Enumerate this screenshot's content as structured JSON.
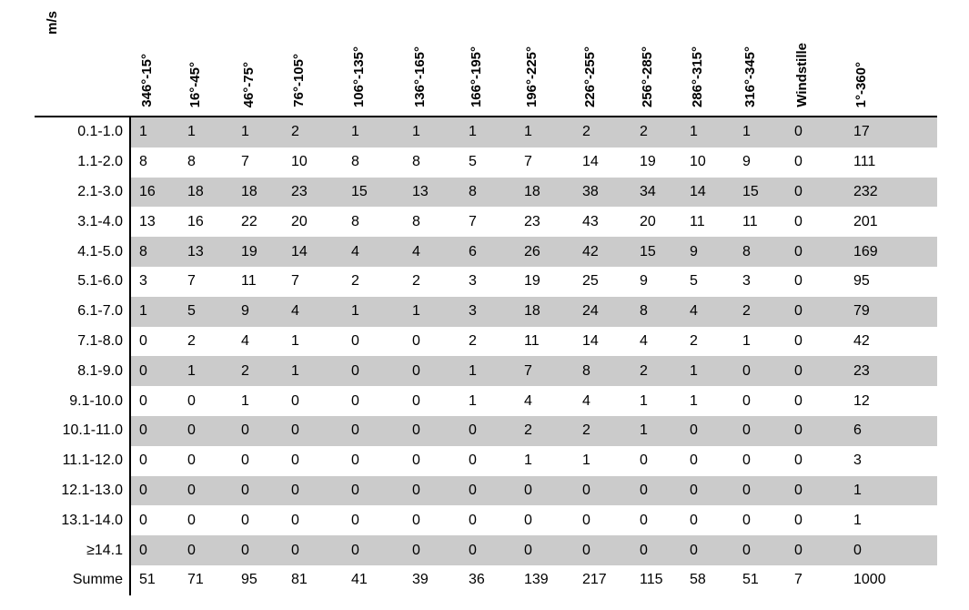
{
  "unit_label": "m/s",
  "colors": {
    "background": "#ffffff",
    "stripe": "#cbcbcb",
    "line": "#000000",
    "text": "#000000"
  },
  "chart_data": {
    "type": "table",
    "unit_label": "m/s",
    "columns": [
      "346°-15°",
      "16°-45°",
      "46°-75°",
      "76°-105°",
      "106°-135°",
      "136°-165°",
      "166°-195°",
      "196°-225°",
      "226°-255°",
      "256°-285°",
      "286°-315°",
      "316°-345°",
      "Windstille",
      "1°-360°"
    ],
    "row_labels": [
      "0.1-1.0",
      "1.1-2.0",
      "2.1-3.0",
      "3.1-4.0",
      "4.1-5.0",
      "5.1-6.0",
      "6.1-7.0",
      "7.1-8.0",
      "8.1-9.0",
      "9.1-10.0",
      "10.1-11.0",
      "11.1-12.0",
      "12.1-13.0",
      "13.1-14.0",
      "≥14.1",
      "Summe"
    ],
    "rows": [
      [
        1,
        1,
        1,
        2,
        1,
        1,
        1,
        1,
        2,
        2,
        1,
        1,
        0,
        17
      ],
      [
        8,
        8,
        7,
        10,
        8,
        8,
        5,
        7,
        14,
        19,
        10,
        9,
        0,
        111
      ],
      [
        16,
        18,
        18,
        23,
        15,
        13,
        8,
        18,
        38,
        34,
        14,
        15,
        0,
        232
      ],
      [
        13,
        16,
        22,
        20,
        8,
        8,
        7,
        23,
        43,
        20,
        11,
        11,
        0,
        201
      ],
      [
        8,
        13,
        19,
        14,
        4,
        4,
        6,
        26,
        42,
        15,
        9,
        8,
        0,
        169
      ],
      [
        3,
        7,
        11,
        7,
        2,
        2,
        3,
        19,
        25,
        9,
        5,
        3,
        0,
        95
      ],
      [
        1,
        5,
        9,
        4,
        1,
        1,
        3,
        18,
        24,
        8,
        4,
        2,
        0,
        79
      ],
      [
        0,
        2,
        4,
        1,
        0,
        0,
        2,
        11,
        14,
        4,
        2,
        1,
        0,
        42
      ],
      [
        0,
        1,
        2,
        1,
        0,
        0,
        1,
        7,
        8,
        2,
        1,
        0,
        0,
        23
      ],
      [
        0,
        0,
        1,
        0,
        0,
        0,
        1,
        4,
        4,
        1,
        1,
        0,
        0,
        12
      ],
      [
        0,
        0,
        0,
        0,
        0,
        0,
        0,
        2,
        2,
        1,
        0,
        0,
        0,
        6
      ],
      [
        0,
        0,
        0,
        0,
        0,
        0,
        0,
        1,
        1,
        0,
        0,
        0,
        0,
        3
      ],
      [
        0,
        0,
        0,
        0,
        0,
        0,
        0,
        0,
        0,
        0,
        0,
        0,
        0,
        1
      ],
      [
        0,
        0,
        0,
        0,
        0,
        0,
        0,
        0,
        0,
        0,
        0,
        0,
        0,
        1
      ],
      [
        0,
        0,
        0,
        0,
        0,
        0,
        0,
        0,
        0,
        0,
        0,
        0,
        0,
        0
      ],
      [
        51,
        71,
        95,
        81,
        41,
        39,
        36,
        139,
        217,
        115,
        58,
        51,
        7,
        1000
      ]
    ]
  }
}
